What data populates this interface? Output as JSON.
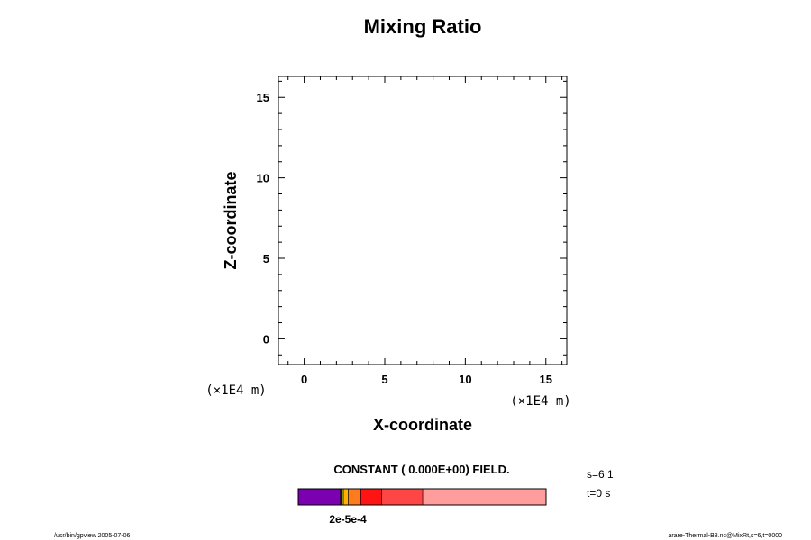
{
  "chart_data": {
    "type": "heatmap",
    "title": "Mixing Ratio",
    "xlabel": "X-coordinate",
    "ylabel": "Z-coordinate",
    "x_unit": "(×1E4 m)",
    "y_unit": "(×1E4 m)",
    "xlim": [
      -1.6,
      16.3
    ],
    "ylim": [
      -1.6,
      16.3
    ],
    "x_ticks": [
      0,
      5,
      10,
      15
    ],
    "y_ticks": [
      0,
      5,
      10,
      15
    ],
    "x_tick_labels": [
      "0",
      "5",
      "10",
      "15"
    ],
    "y_tick_labels": [
      "0",
      "5",
      "10",
      "15"
    ],
    "values": [],
    "field_message": "CONSTANT ( 0.000E+00) FIELD.",
    "colorbar": {
      "segments": [
        {
          "color": "#7a00b0",
          "fraction": 0.17
        },
        {
          "color": "#2a2a9a",
          "fraction": 0.004
        },
        {
          "color": "#c8c800",
          "fraction": 0.008
        },
        {
          "color": "#ffb000",
          "fraction": 0.02
        },
        {
          "color": "#ff7c1e",
          "fraction": 0.05
        },
        {
          "color": "#ff1414",
          "fraction": 0.085
        },
        {
          "color": "#ff4646",
          "fraction": 0.165
        },
        {
          "color": "#ff9c9c",
          "fraction": 0.498
        }
      ],
      "tick_labels_overlapping": [
        "2e-5",
        "5e-5",
        "1e-4"
      ],
      "tick_text_rendered": "2e-5e-4"
    },
    "info": {
      "slice": "s=6 1",
      "time": "t=0 s"
    }
  },
  "footer": {
    "left": "/usr/bin/gpview 2005-07-06",
    "right": "arare-Thermal-B8.nc@MixRt,s=6,t=0000"
  }
}
